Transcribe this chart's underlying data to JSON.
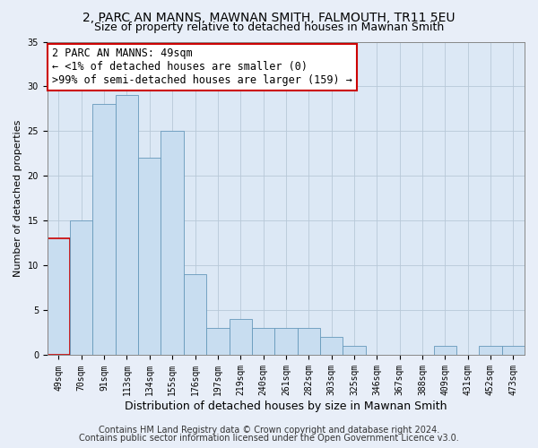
{
  "title": "2, PARC AN MANNS, MAWNAN SMITH, FALMOUTH, TR11 5EU",
  "subtitle": "Size of property relative to detached houses in Mawnan Smith",
  "xlabel": "Distribution of detached houses by size in Mawnan Smith",
  "ylabel": "Number of detached properties",
  "bar_labels": [
    "49sqm",
    "70sqm",
    "91sqm",
    "113sqm",
    "134sqm",
    "155sqm",
    "176sqm",
    "197sqm",
    "219sqm",
    "240sqm",
    "261sqm",
    "282sqm",
    "303sqm",
    "325sqm",
    "346sqm",
    "367sqm",
    "388sqm",
    "409sqm",
    "431sqm",
    "452sqm",
    "473sqm"
  ],
  "bar_values": [
    13,
    15,
    28,
    29,
    22,
    25,
    9,
    3,
    4,
    3,
    3,
    3,
    2,
    1,
    0,
    0,
    0,
    1,
    0,
    1,
    1
  ],
  "bar_color": "#c8ddf0",
  "bar_edge_color": "#6699bb",
  "highlight_index": 0,
  "highlight_edge_color": "#cc0000",
  "annotation_line1": "2 PARC AN MANNS: 49sqm",
  "annotation_line2": "← <1% of detached houses are smaller (0)",
  "annotation_line3": ">99% of semi-detached houses are larger (159) →",
  "annotation_box_edge_color": "#cc0000",
  "annotation_box_facecolor": "#ffffff",
  "ylim": [
    0,
    35
  ],
  "yticks": [
    0,
    5,
    10,
    15,
    20,
    25,
    30,
    35
  ],
  "footer_line1": "Contains HM Land Registry data © Crown copyright and database right 2024.",
  "footer_line2": "Contains public sector information licensed under the Open Government Licence v3.0.",
  "bg_color": "#e8eef8",
  "plot_bg_color": "#dce8f5",
  "grid_color": "#b8c8d8",
  "title_fontsize": 10,
  "subtitle_fontsize": 9,
  "annotation_fontsize": 8.5,
  "footer_fontsize": 7,
  "tick_fontsize": 7,
  "ylabel_fontsize": 8,
  "xlabel_fontsize": 9
}
